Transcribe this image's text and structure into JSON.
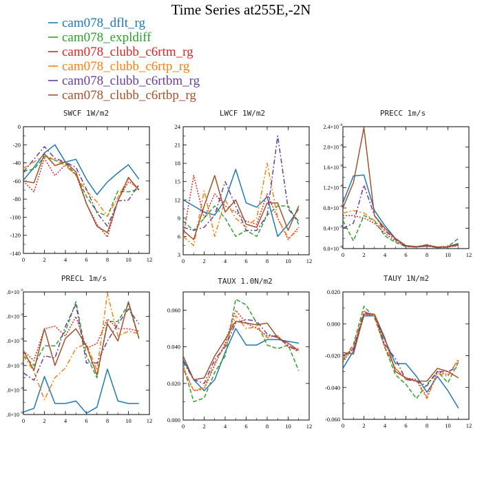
{
  "title": "Time Series at255E,-2N",
  "legend": [
    {
      "label": "cam078_dflt_rg",
      "color": "#1f77b4",
      "dash": "solid"
    },
    {
      "label": "cam078_expldiff",
      "color": "#2ca02c",
      "dash": "dash"
    },
    {
      "label": "cam078_clubb_c6rtm_rg",
      "color": "#d62728",
      "dash": "dot"
    },
    {
      "label": "cam078_clubb_c6rtp_rg",
      "color": "#ff7f0e",
      "dash": "dashdot"
    },
    {
      "label": "cam078_clubb_c6rtbm_rg",
      "color": "#6a3d9a",
      "dash": "dashdot"
    },
    {
      "label": "cam078_clubb_c6rtbp_rg",
      "color": "#a0522d",
      "dash": "solid"
    }
  ],
  "chart_data": [
    {
      "type": "line",
      "title": "SWCF   1W/m2",
      "x": [
        0,
        1,
        2,
        3,
        4,
        5,
        6,
        7,
        8,
        9,
        10,
        11
      ],
      "xlim": [
        0,
        12
      ],
      "ylim": [
        -140,
        0
      ],
      "xticks": [
        0,
        2,
        4,
        6,
        8,
        10,
        12
      ],
      "yticks": [
        {
          "v": 0,
          "label": "0"
        },
        {
          "v": -20,
          "label": "-20"
        },
        {
          "v": -40,
          "label": "-40"
        },
        {
          "v": -60,
          "label": "-60"
        },
        {
          "v": -80,
          "label": "-80"
        },
        {
          "v": -100,
          "label": "-100"
        },
        {
          "v": -120,
          "label": "-120"
        },
        {
          "v": -140,
          "label": "-140"
        }
      ],
      "series": [
        {
          "name": "cam078_dflt_rg",
          "values": [
            -59,
            -45,
            -29,
            -20,
            -39,
            -36,
            -58,
            -75,
            -61,
            -51,
            -42,
            -58
          ]
        },
        {
          "name": "cam078_expldiff",
          "values": [
            -49,
            -47,
            -33,
            -37,
            -40,
            -53,
            -77,
            -94,
            -99,
            -71,
            -72,
            -69
          ]
        },
        {
          "name": "cam078_clubb_c6rtm_rg",
          "values": [
            -60,
            -72,
            -35,
            -54,
            -42,
            -53,
            -85,
            -108,
            -122,
            -81,
            -61,
            -67
          ]
        },
        {
          "name": "cam078_clubb_c6rtp_rg",
          "values": [
            -46,
            -39,
            -31,
            -37,
            -43,
            -54,
            -71,
            -83,
            -99,
            -78,
            -57,
            -71
          ]
        },
        {
          "name": "cam078_clubb_c6rtbm_rg",
          "values": [
            -50,
            -36,
            -22,
            -35,
            -39,
            -45,
            -69,
            -95,
            -110,
            -82,
            -81,
            -64
          ]
        },
        {
          "name": "cam078_clubb_c6rtbp_rg",
          "values": [
            -60,
            -62,
            -30,
            -43,
            -39,
            -50,
            -85,
            -110,
            -117,
            -82,
            -56,
            -70
          ]
        }
      ]
    },
    {
      "type": "line",
      "title": "LWCF   1W/m2",
      "x": [
        0,
        1,
        2,
        3,
        4,
        5,
        6,
        7,
        8,
        9,
        10,
        11
      ],
      "xlim": [
        0,
        12
      ],
      "ylim": [
        3,
        24
      ],
      "xticks": [
        0,
        2,
        4,
        6,
        8,
        10,
        12
      ],
      "yticks": [
        {
          "v": 3,
          "label": "3"
        },
        {
          "v": 6,
          "label": "6"
        },
        {
          "v": 9,
          "label": "9"
        },
        {
          "v": 12,
          "label": "12"
        },
        {
          "v": 15,
          "label": "15"
        },
        {
          "v": 18,
          "label": "18"
        },
        {
          "v": 21,
          "label": "21"
        },
        {
          "v": 24,
          "label": "24"
        }
      ],
      "series": [
        {
          "name": "cam078_dflt_rg",
          "values": [
            12,
            11,
            10,
            9.5,
            12,
            17,
            11.5,
            10.8,
            12.5,
            6,
            8,
            10.5
          ]
        },
        {
          "name": "cam078_expldiff",
          "values": [
            8.5,
            7,
            9,
            11,
            9,
            6,
            7,
            6,
            9.5,
            11,
            11,
            8
          ]
        },
        {
          "name": "cam078_clubb_c6rtm_rg",
          "values": [
            6,
            16,
            9,
            13,
            11,
            10,
            8.5,
            8,
            13,
            9,
            5.5,
            7.5
          ]
        },
        {
          "name": "cam078_clubb_c6rtp_rg",
          "values": [
            6,
            4.5,
            13.5,
            6,
            12,
            9,
            7.5,
            9,
            18,
            9,
            5.8,
            7
          ]
        },
        {
          "name": "cam078_clubb_c6rtbm_rg",
          "values": [
            7.5,
            7,
            7.5,
            9.5,
            15,
            11,
            7,
            7,
            9.5,
            22.5,
            10.5,
            8.5
          ]
        },
        {
          "name": "cam078_clubb_c6rtbp_rg",
          "values": [
            7,
            5.5,
            11,
            16,
            10,
            12,
            8,
            7.5,
            11.5,
            11.5,
            7,
            11
          ]
        }
      ]
    },
    {
      "type": "line",
      "title": "PRECC   1m/s",
      "x": [
        0,
        1,
        2,
        3,
        4,
        5,
        6,
        7,
        8,
        9,
        10,
        11
      ],
      "xlim": [
        0,
        12
      ],
      "ylim": [
        0,
        2.4
      ],
      "scale_exponent": -8,
      "xticks": [
        0,
        2,
        4,
        6,
        8,
        10,
        12
      ],
      "yticks": [
        {
          "v": 0,
          "label": "0.0×10"
        },
        {
          "v": 0.4,
          "label": "0.4×10"
        },
        {
          "v": 0.8,
          "label": "0.8×10"
        },
        {
          "v": 1.2,
          "label": "1.2×10"
        },
        {
          "v": 1.6,
          "label": "1.6×10"
        },
        {
          "v": 2.0,
          "label": "2.0×10"
        },
        {
          "v": 2.4,
          "label": "2.4×10"
        }
      ],
      "series": [
        {
          "name": "cam078_dflt_rg",
          "values": [
            0.9,
            1.43,
            1.45,
            0.75,
            0.45,
            0.2,
            0.05,
            0.03,
            0.06,
            0.03,
            0.04,
            0.1
          ]
        },
        {
          "name": "cam078_expldiff",
          "values": [
            0.55,
            0.15,
            0.65,
            0.55,
            0.25,
            0.12,
            0.04,
            0.03,
            0.05,
            0.02,
            0.04,
            0.2
          ]
        },
        {
          "name": "cam078_clubb_c6rtm_rg",
          "values": [
            0.65,
            0.65,
            0.6,
            0.5,
            0.3,
            0.15,
            0.04,
            0.03,
            0.05,
            0.02,
            0.03,
            0.06
          ]
        },
        {
          "name": "cam078_clubb_c6rtp_rg",
          "values": [
            0.7,
            0.75,
            0.7,
            0.55,
            0.35,
            0.2,
            0.05,
            0.03,
            0.08,
            0.03,
            0.04,
            0.08
          ]
        },
        {
          "name": "cam078_clubb_c6rtbm_rg",
          "values": [
            0.4,
            0.5,
            1.25,
            0.65,
            0.35,
            0.18,
            0.04,
            0.03,
            0.05,
            0.02,
            0.03,
            0.07
          ]
        },
        {
          "name": "cam078_clubb_c6rtbp_rg",
          "values": [
            0.8,
            1.3,
            2.38,
            0.65,
            0.4,
            0.2,
            0.06,
            0.04,
            0.07,
            0.03,
            0.04,
            0.08
          ]
        }
      ]
    },
    {
      "type": "line",
      "title": "PRECL   1m/s",
      "x": [
        0,
        1,
        2,
        3,
        4,
        5,
        6,
        7,
        8,
        9,
        10,
        11
      ],
      "xlim": [
        0,
        12
      ],
      "ylim": [
        0,
        5
      ],
      "scale_exponent": -9,
      "xticks": [
        0,
        2,
        4,
        6,
        8,
        10,
        12
      ],
      "yticks": [
        {
          "v": 0,
          "label": ".0×10"
        },
        {
          "v": 1,
          "label": ".0×10"
        },
        {
          "v": 2,
          "label": ".0×10"
        },
        {
          "v": 3,
          "label": ".0×10"
        },
        {
          "v": 4,
          "label": ".0×10"
        },
        {
          "v": 5,
          "label": ".0×10"
        }
      ],
      "series": [
        {
          "name": "cam078_dflt_rg",
          "values": [
            0.1,
            0.25,
            1.55,
            0.45,
            0.45,
            0.55,
            0.05,
            0.3,
            1.85,
            0.55,
            0.45,
            0.45
          ]
        },
        {
          "name": "cam078_expldiff",
          "values": [
            2.4,
            2.0,
            2.8,
            2.8,
            3.4,
            4.6,
            2.4,
            1.5,
            3.8,
            3.8,
            4.5,
            3.1
          ]
        },
        {
          "name": "cam078_clubb_c6rtm_rg",
          "values": [
            2.6,
            2.2,
            3.5,
            3.6,
            3.2,
            4.0,
            2.7,
            2.9,
            3.9,
            3.5,
            3.5,
            3.4
          ]
        },
        {
          "name": "cam078_clubb_c6rtp_rg",
          "values": [
            2.4,
            1.75,
            0.6,
            1.5,
            1.9,
            2.7,
            2.9,
            1.8,
            4.95,
            3.2,
            3.4,
            3.3
          ]
        },
        {
          "name": "cam078_clubb_c6rtbm_rg",
          "values": [
            1.7,
            1.4,
            2.4,
            2.3,
            3.6,
            4.5,
            2.1,
            2.1,
            3.0,
            3.7,
            4.3,
            3.7
          ]
        },
        {
          "name": "cam078_clubb_c6rtbp_rg",
          "values": [
            2.6,
            1.8,
            3.5,
            2.0,
            3.1,
            3.5,
            2.8,
            1.6,
            3.7,
            3.0,
            4.6,
            3.1
          ]
        }
      ]
    },
    {
      "type": "line",
      "title": "TAUX   1.0N/m2",
      "x": [
        0,
        1,
        2,
        3,
        4,
        5,
        6,
        7,
        8,
        9,
        10,
        11
      ],
      "xlim": [
        0,
        12
      ],
      "ylim": [
        0,
        0.07
      ],
      "xticks": [
        0,
        2,
        4,
        6,
        8,
        10,
        12
      ],
      "yticks": [
        {
          "v": 0,
          "label": "0.000"
        },
        {
          "v": 0.02,
          "label": "0.020"
        },
        {
          "v": 0.04,
          "label": "0.040"
        },
        {
          "v": 0.06,
          "label": "0.060"
        }
      ],
      "series": [
        {
          "name": "cam078_dflt_rg",
          "values": [
            0.033,
            0.022,
            0.016,
            0.022,
            0.037,
            0.05,
            0.041,
            0.041,
            0.044,
            0.044,
            0.043,
            0.042
          ]
        },
        {
          "name": "cam078_expldiff",
          "values": [
            0.03,
            0.01,
            0.012,
            0.026,
            0.035,
            0.066,
            0.063,
            0.053,
            0.041,
            0.039,
            0.041,
            0.027
          ]
        },
        {
          "name": "cam078_clubb_c6rtm_rg",
          "values": [
            0.028,
            0.016,
            0.017,
            0.03,
            0.042,
            0.06,
            0.053,
            0.05,
            0.046,
            0.046,
            0.04,
            0.038
          ]
        },
        {
          "name": "cam078_clubb_c6rtp_rg",
          "values": [
            0.029,
            0.016,
            0.018,
            0.031,
            0.041,
            0.057,
            0.05,
            0.051,
            0.045,
            0.046,
            0.04,
            0.039
          ]
        },
        {
          "name": "cam078_clubb_c6rtbm_rg",
          "values": [
            0.032,
            0.022,
            0.02,
            0.033,
            0.04,
            0.053,
            0.055,
            0.054,
            0.047,
            0.045,
            0.041,
            0.037
          ]
        },
        {
          "name": "cam078_clubb_c6rtbp_rg",
          "values": [
            0.035,
            0.022,
            0.023,
            0.035,
            0.044,
            0.054,
            0.053,
            0.052,
            0.053,
            0.045,
            0.042,
            0.038
          ]
        }
      ]
    },
    {
      "type": "line",
      "title": "TAUY   1N/m2",
      "x": [
        0,
        1,
        2,
        3,
        4,
        5,
        6,
        7,
        8,
        9,
        10,
        11
      ],
      "xlim": [
        0,
        12
      ],
      "ylim": [
        -0.06,
        0.02
      ],
      "xticks": [
        0,
        2,
        4,
        6,
        8,
        10,
        12
      ],
      "yticks": [
        {
          "v": 0.02,
          "label": "0.020"
        },
        {
          "v": 0,
          "label": "0.000"
        },
        {
          "v": -0.02,
          "label": "-0.020"
        },
        {
          "v": -0.04,
          "label": "-0.040"
        },
        {
          "v": -0.06,
          "label": "-0.060"
        }
      ],
      "series": [
        {
          "name": "cam078_dflt_rg",
          "values": [
            -0.028,
            -0.017,
            0.005,
            0.005,
            -0.01,
            -0.025,
            -0.025,
            -0.033,
            -0.043,
            -0.033,
            -0.042,
            -0.053
          ]
        },
        {
          "name": "cam078_expldiff",
          "values": [
            -0.023,
            -0.013,
            0.011,
            0.004,
            -0.015,
            -0.032,
            -0.038,
            -0.047,
            -0.038,
            -0.03,
            -0.037,
            -0.024
          ]
        },
        {
          "name": "cam078_clubb_c6rtm_rg",
          "values": [
            -0.024,
            -0.015,
            0.006,
            0.005,
            -0.015,
            -0.028,
            -0.034,
            -0.035,
            -0.046,
            -0.03,
            -0.032,
            -0.023
          ]
        },
        {
          "name": "cam078_clubb_c6rtp_rg",
          "values": [
            -0.022,
            -0.014,
            0.008,
            0.005,
            -0.014,
            -0.028,
            -0.035,
            -0.036,
            -0.047,
            -0.031,
            -0.033,
            -0.022
          ]
        },
        {
          "name": "cam078_clubb_c6rtbm_rg",
          "values": [
            -0.02,
            -0.016,
            0.007,
            0.006,
            -0.013,
            -0.022,
            -0.035,
            -0.036,
            -0.039,
            -0.03,
            -0.03,
            -0.027
          ]
        },
        {
          "name": "cam078_clubb_c6rtbp_rg",
          "values": [
            -0.018,
            -0.019,
            0.006,
            0.006,
            -0.009,
            -0.03,
            -0.034,
            -0.036,
            -0.036,
            -0.028,
            -0.03,
            -0.034
          ]
        }
      ]
    }
  ]
}
